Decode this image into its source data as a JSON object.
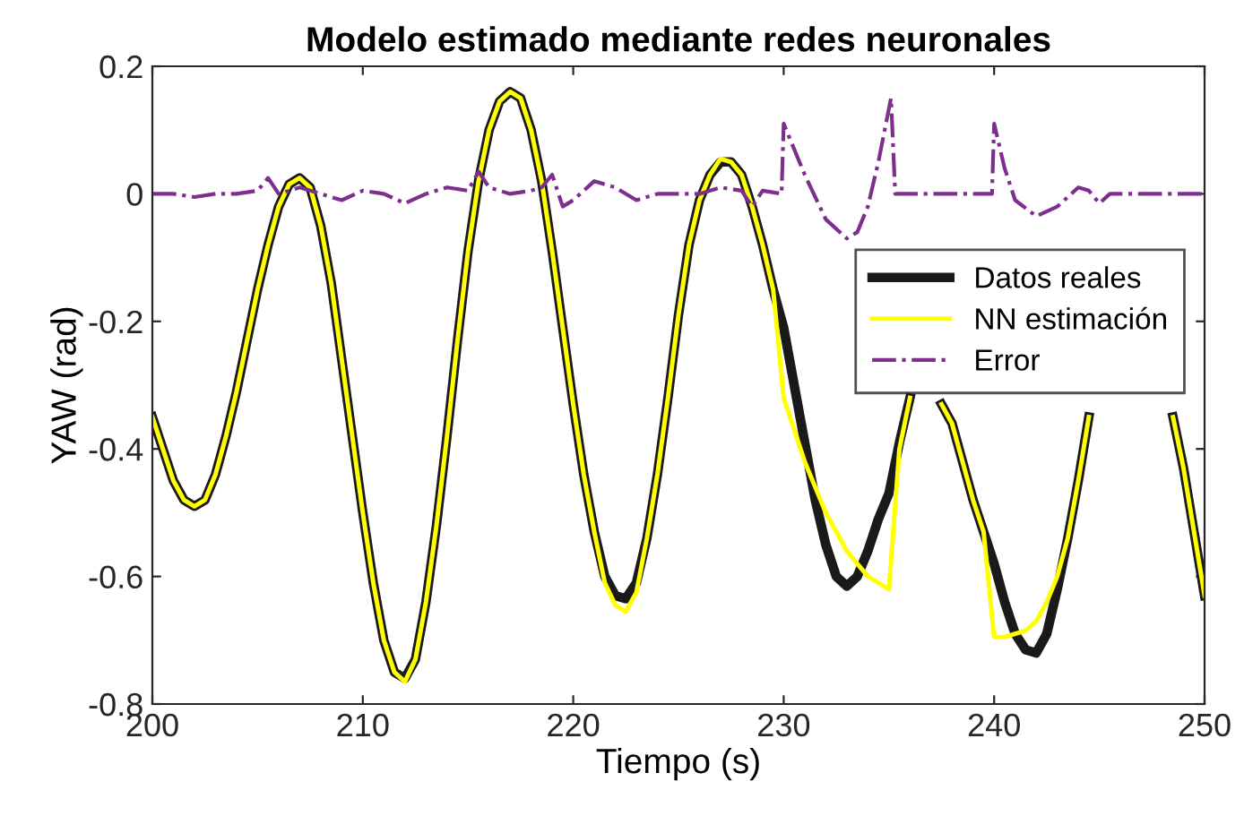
{
  "chart_data": {
    "type": "line",
    "title": "Modelo estimado mediante redes neuronales",
    "xlabel": "Tiempo (s)",
    "ylabel": "YAW (rad)",
    "xlim": [
      200,
      250
    ],
    "ylim": [
      -0.8,
      0.2
    ],
    "xticks": [
      200,
      210,
      220,
      230,
      240,
      250
    ],
    "yticks": [
      -0.8,
      -0.6,
      -0.4,
      -0.2,
      0,
      0.2
    ],
    "grid": false,
    "legend": "right",
    "x": [
      200,
      200.5,
      201,
      201.5,
      202,
      202.5,
      203,
      203.5,
      204,
      204.5,
      205,
      205.5,
      206,
      206.5,
      207,
      207.5,
      208,
      208.5,
      209,
      209.5,
      210,
      210.5,
      211,
      211.5,
      212,
      212.5,
      213,
      213.5,
      214,
      214.5,
      215,
      215.5,
      216,
      216.5,
      217,
      217.5,
      218,
      218.5,
      219,
      219.5,
      220,
      220.5,
      221,
      221.5,
      222,
      222.5,
      223,
      223.5,
      224,
      224.5,
      225,
      225.5,
      226,
      226.5,
      227,
      227.5,
      228,
      228.5,
      229,
      229.5,
      230,
      230.5,
      231,
      231.5,
      232,
      232.5,
      233,
      233.5,
      234,
      234.5,
      235,
      235.5,
      236,
      236.5,
      237,
      237.5,
      238,
      238.5,
      239,
      239.5,
      240,
      240.5,
      241,
      241.5,
      242,
      242.5,
      243,
      243.5,
      244,
      244.5,
      245,
      245.5,
      246,
      246.5,
      247,
      247.5,
      248,
      248.5,
      249,
      249.5,
      250
    ],
    "series": [
      {
        "name": "Datos reales",
        "color": "#1a1a1a",
        "line_style": "solid",
        "values": [
          -0.35,
          -0.4,
          -0.45,
          -0.48,
          -0.49,
          -0.48,
          -0.44,
          -0.38,
          -0.31,
          -0.23,
          -0.15,
          -0.08,
          -0.02,
          0.015,
          0.025,
          0.01,
          -0.05,
          -0.14,
          -0.26,
          -0.38,
          -0.5,
          -0.61,
          -0.7,
          -0.75,
          -0.76,
          -0.73,
          -0.64,
          -0.52,
          -0.38,
          -0.23,
          -0.09,
          0.02,
          0.1,
          0.145,
          0.16,
          0.15,
          0.1,
          0.02,
          -0.09,
          -0.21,
          -0.33,
          -0.44,
          -0.53,
          -0.6,
          -0.63,
          -0.635,
          -0.61,
          -0.54,
          -0.44,
          -0.32,
          -0.19,
          -0.08,
          -0.01,
          0.03,
          0.05,
          0.05,
          0.03,
          -0.02,
          -0.08,
          -0.15,
          -0.21,
          -0.3,
          -0.39,
          -0.48,
          -0.55,
          -0.6,
          -0.615,
          -0.6,
          -0.56,
          -0.51,
          -0.47,
          -0.39,
          -0.32,
          null,
          null,
          -0.33,
          -0.36,
          -0.42,
          -0.48,
          -0.53,
          -0.58,
          -0.64,
          -0.69,
          -0.715,
          -0.72,
          -0.69,
          -0.62,
          -0.54,
          -0.45,
          -0.35,
          null,
          null,
          null,
          null,
          null,
          null,
          null,
          -0.35,
          -0.43,
          -0.53,
          -0.63
        ]
      },
      {
        "name": "NN estimación",
        "color": "#ffff00",
        "line_style": "solid",
        "values": [
          -0.35,
          -0.4,
          -0.45,
          -0.48,
          -0.49,
          -0.48,
          -0.44,
          -0.38,
          -0.31,
          -0.23,
          -0.15,
          -0.08,
          -0.02,
          0.015,
          0.025,
          0.01,
          -0.05,
          -0.14,
          -0.26,
          -0.38,
          -0.5,
          -0.61,
          -0.7,
          -0.75,
          -0.765,
          -0.73,
          -0.64,
          -0.52,
          -0.38,
          -0.23,
          -0.09,
          0.02,
          0.1,
          0.145,
          0.16,
          0.15,
          0.1,
          0.02,
          -0.09,
          -0.21,
          -0.33,
          -0.44,
          -0.53,
          -0.61,
          -0.645,
          -0.655,
          -0.625,
          -0.54,
          -0.44,
          -0.32,
          -0.19,
          -0.08,
          -0.01,
          0.03,
          0.055,
          0.05,
          0.03,
          -0.02,
          -0.08,
          -0.15,
          -0.32,
          -0.37,
          -0.42,
          -0.46,
          -0.5,
          -0.53,
          -0.56,
          -0.58,
          -0.6,
          -0.61,
          -0.62,
          -0.4,
          -0.32,
          null,
          null,
          -0.33,
          -0.36,
          -0.42,
          -0.48,
          -0.53,
          -0.695,
          -0.695,
          -0.69,
          -0.685,
          -0.67,
          -0.64,
          -0.6,
          -0.54,
          -0.45,
          -0.35,
          null,
          null,
          null,
          null,
          null,
          null,
          null,
          -0.35,
          -0.43,
          -0.53,
          -0.63
        ]
      },
      {
        "name": "Error",
        "color": "#7e2f8e",
        "line_style": "dashdot",
        "x": [
          200,
          201,
          202,
          203,
          204,
          205,
          205.5,
          206,
          207,
          208,
          209,
          210,
          211,
          212,
          213,
          214,
          215,
          215.5,
          216,
          217,
          218,
          218.5,
          219,
          219.5,
          220,
          221,
          222,
          223,
          224,
          225,
          226,
          227,
          228,
          228.5,
          229,
          229.9,
          230,
          231,
          232,
          233,
          233.5,
          234,
          234.5,
          235.1,
          235.3,
          236,
          237,
          238,
          239,
          239.9,
          240,
          240.5,
          241,
          242,
          243,
          244,
          244.5,
          245,
          245.5,
          246,
          247,
          248,
          249,
          250
        ],
        "values": [
          0,
          0,
          -0.005,
          0,
          0,
          0.005,
          0.025,
          0,
          0.01,
          0,
          -0.01,
          0.005,
          0,
          -0.015,
          0,
          0.01,
          0.005,
          0.035,
          0.01,
          0,
          0.005,
          0.01,
          0.03,
          -0.02,
          -0.01,
          0.02,
          0.01,
          -0.01,
          0,
          0,
          0,
          0.01,
          0.005,
          -0.02,
          0.005,
          0,
          0.11,
          0.03,
          -0.04,
          -0.07,
          -0.06,
          -0.02,
          0.05,
          0.15,
          0,
          0,
          0,
          0,
          0,
          0,
          0.11,
          0.04,
          -0.01,
          -0.035,
          -0.02,
          0.01,
          0.005,
          -0.015,
          0,
          0,
          0,
          0,
          0,
          0
        ]
      }
    ]
  }
}
